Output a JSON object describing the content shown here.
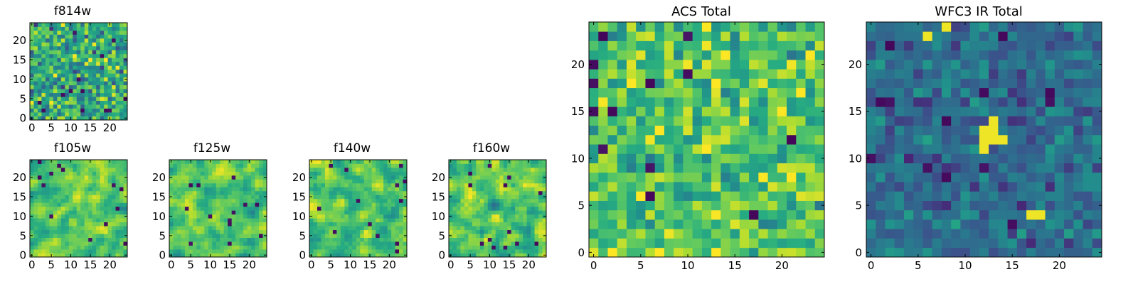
{
  "chart_data": [
    {
      "type": "heatmap",
      "title": "f814w",
      "xticks": [
        0,
        5,
        10,
        15,
        20
      ],
      "yticks": [
        0,
        5,
        10,
        15,
        20
      ],
      "xlim": [
        -0.5,
        24.5
      ],
      "ylim": [
        -0.5,
        24.5
      ],
      "grid": [
        25,
        25
      ],
      "colormap": "viridis",
      "seed": 814,
      "level": 0.62,
      "spread": 0.22,
      "smooth": 0
    },
    {
      "type": "heatmap",
      "title": "f105w",
      "xticks": [
        0,
        5,
        10,
        15,
        20
      ],
      "yticks": [
        0,
        5,
        10,
        15,
        20
      ],
      "xlim": [
        -0.5,
        24.5
      ],
      "ylim": [
        -0.5,
        24.5
      ],
      "grid": [
        25,
        25
      ],
      "colormap": "viridis",
      "seed": 105,
      "level": 0.74,
      "spread": 0.16,
      "smooth": 1
    },
    {
      "type": "heatmap",
      "title": "f125w",
      "xticks": [
        0,
        5,
        10,
        15,
        20
      ],
      "yticks": [
        0,
        5,
        10,
        15,
        20
      ],
      "xlim": [
        -0.5,
        24.5
      ],
      "ylim": [
        -0.5,
        24.5
      ],
      "grid": [
        25,
        25
      ],
      "colormap": "viridis",
      "seed": 125,
      "level": 0.74,
      "spread": 0.17,
      "smooth": 1
    },
    {
      "type": "heatmap",
      "title": "f140w",
      "xticks": [
        0,
        5,
        10,
        15,
        20
      ],
      "yticks": [
        0,
        5,
        10,
        15,
        20
      ],
      "xlim": [
        -0.5,
        24.5
      ],
      "ylim": [
        -0.5,
        24.5
      ],
      "grid": [
        25,
        25
      ],
      "colormap": "viridis",
      "seed": 140,
      "level": 0.72,
      "spread": 0.18,
      "smooth": 1
    },
    {
      "type": "heatmap",
      "title": "f160w",
      "xticks": [
        0,
        5,
        10,
        15,
        20
      ],
      "yticks": [
        0,
        5,
        10,
        15,
        20
      ],
      "xlim": [
        -0.5,
        24.5
      ],
      "ylim": [
        -0.5,
        24.5
      ],
      "grid": [
        25,
        25
      ],
      "colormap": "viridis",
      "seed": 160,
      "level": 0.73,
      "spread": 0.18,
      "smooth": 1
    },
    {
      "type": "heatmap",
      "title": "ACS Total",
      "xticks": [
        0,
        5,
        10,
        15,
        20
      ],
      "yticks": [
        0,
        5,
        10,
        15,
        20
      ],
      "xlim": [
        -0.5,
        24.5
      ],
      "ylim": [
        -0.5,
        24.5
      ],
      "grid": [
        25,
        25
      ],
      "colormap": "viridis",
      "seed": 999,
      "level": 0.72,
      "spread": 0.17,
      "smooth": 0
    },
    {
      "type": "heatmap",
      "title": "WFC3 IR Total",
      "xticks": [
        0,
        5,
        10,
        15,
        20
      ],
      "yticks": [
        0,
        5,
        10,
        15,
        20
      ],
      "xlim": [
        -0.5,
        24.5
      ],
      "ylim": [
        -0.5,
        24.5
      ],
      "grid": [
        25,
        25
      ],
      "colormap": "viridis",
      "seed": 333,
      "level": 0.36,
      "spread": 0.11,
      "smooth": 0,
      "bright_cells": [
        [
          12,
          12
        ],
        [
          13,
          12
        ],
        [
          12,
          13
        ],
        [
          13,
          13
        ],
        [
          12,
          11
        ],
        [
          14,
          12
        ],
        [
          6,
          23
        ],
        [
          8,
          24
        ],
        [
          17,
          4
        ],
        [
          18,
          4
        ],
        [
          13,
          14
        ]
      ]
    }
  ]
}
